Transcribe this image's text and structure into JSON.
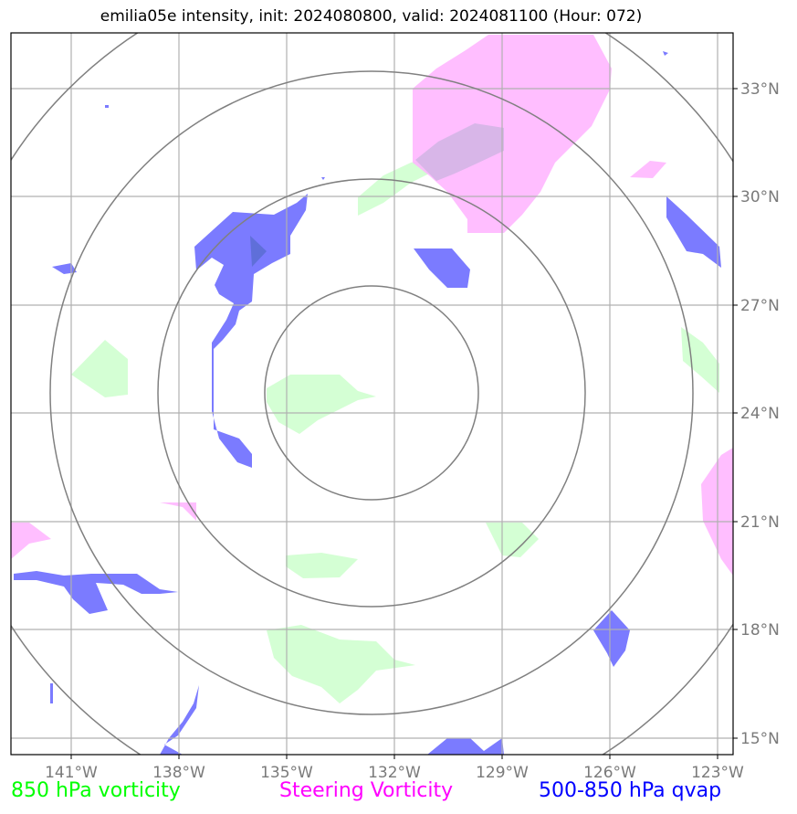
{
  "title": "emilia05e intensity, init: 2024080800, valid: 2024081100 (Hour: 072)",
  "map": {
    "lon_labels": [
      "141°W",
      "138°W",
      "135°W",
      "132°W",
      "129°W",
      "126°W",
      "123°W"
    ],
    "lat_labels": [
      "33°N",
      "30°N",
      "27°N",
      "24°N",
      "21°N",
      "18°N",
      "15°N"
    ],
    "range_rings": 4
  },
  "legend": {
    "vorticity_850": {
      "label": "850 hPa vorticity",
      "color": "#00ff00"
    },
    "steering_vorticity": {
      "label": "Steering Vorticity",
      "color": "#ff00ff"
    },
    "qvap": {
      "label": "500-850 hPa qvap",
      "color": "#0000ff"
    }
  },
  "colors": {
    "vorticity_fill": "#ccffcc",
    "steering_fill": "#ffb3ff",
    "qvap_fill": "#7b7bff",
    "grid": "#b0b0b0",
    "rings": "#808080"
  }
}
